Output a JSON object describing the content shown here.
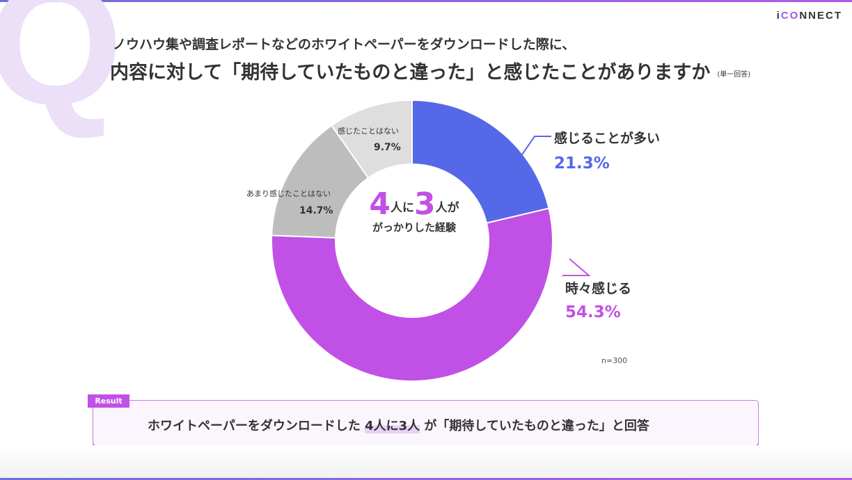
{
  "brand": {
    "logo_pre": "i",
    "logo_accent": "CO",
    "logo_post": "NNECT",
    "q_mark": "Q",
    "accent": "#c150e6"
  },
  "question": {
    "line1": "ノウハウ集や調査レポートなどのホワイトペーパーをダウンロードした際に、",
    "line2": "内容に対して「期待していたものと違った」と感じたことがありますか",
    "note": "(単一回答)"
  },
  "chart_data": {
    "type": "pie",
    "donut": true,
    "start": "top",
    "direction": "clockwise",
    "slices": [
      {
        "label": "感じることが多い",
        "value": 21.3,
        "display": "21.3%",
        "color": "#5468e8"
      },
      {
        "label": "時々感じる",
        "value": 54.3,
        "display": "54.3%",
        "color": "#c150e6"
      },
      {
        "label": "あまり感じたことはない",
        "value": 14.7,
        "display": "14.7%",
        "color": "#bdbdbd"
      },
      {
        "label": "感じたことはない",
        "value": 9.7,
        "display": "9.7%",
        "color": "#dedede"
      }
    ],
    "center": {
      "num1": "4",
      "t1": "人に",
      "num2": "3",
      "t2": "人が",
      "line2": "がっかりした経験"
    },
    "n": "n=300"
  },
  "result": {
    "tag": "Result",
    "pre": "ホワイトペーパーをダウンロードした ",
    "highlight": "4人に3人",
    "post": " が「期待していたものと違った」と回答"
  }
}
